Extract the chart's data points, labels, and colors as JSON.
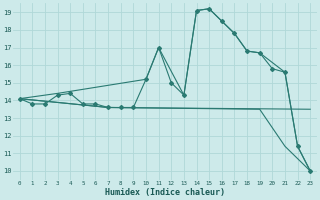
{
  "xlabel": "Humidex (Indice chaleur)",
  "xlim": [
    -0.5,
    23.5
  ],
  "ylim": [
    9.5,
    19.5
  ],
  "yticks": [
    10,
    11,
    12,
    13,
    14,
    15,
    16,
    17,
    18,
    19
  ],
  "xticks": [
    0,
    1,
    2,
    3,
    4,
    5,
    6,
    7,
    8,
    9,
    10,
    11,
    12,
    13,
    14,
    15,
    16,
    17,
    18,
    19,
    20,
    21,
    22,
    23
  ],
  "bg_color": "#cdeaea",
  "line_color": "#2a7a72",
  "grid_color": "#b0d8d8",
  "line1_x": [
    0,
    1,
    2,
    3,
    4,
    5,
    6,
    7,
    8,
    9,
    10,
    11,
    12,
    13,
    14,
    15,
    16,
    17,
    18,
    19,
    20,
    21,
    22,
    23
  ],
  "line1_y": [
    14.1,
    13.8,
    13.8,
    14.3,
    14.4,
    13.8,
    13.8,
    13.6,
    13.6,
    13.6,
    15.2,
    17.0,
    15.0,
    14.3,
    19.1,
    19.2,
    18.5,
    17.8,
    16.8,
    16.7,
    15.8,
    15.6,
    11.4,
    10.0
  ],
  "line2_x": [
    0,
    3,
    10,
    11,
    13,
    14,
    15,
    16,
    17,
    18,
    19,
    21,
    22,
    23
  ],
  "line2_y": [
    14.1,
    14.4,
    15.2,
    17.0,
    14.3,
    19.1,
    19.2,
    18.5,
    17.8,
    16.8,
    16.7,
    15.6,
    11.4,
    10.0
  ],
  "line3_x": [
    0,
    7,
    23
  ],
  "line3_y": [
    14.1,
    13.6,
    13.5
  ],
  "line4_x": [
    0,
    7,
    19,
    21,
    23
  ],
  "line4_y": [
    14.1,
    13.6,
    13.5,
    11.4,
    10.0
  ]
}
